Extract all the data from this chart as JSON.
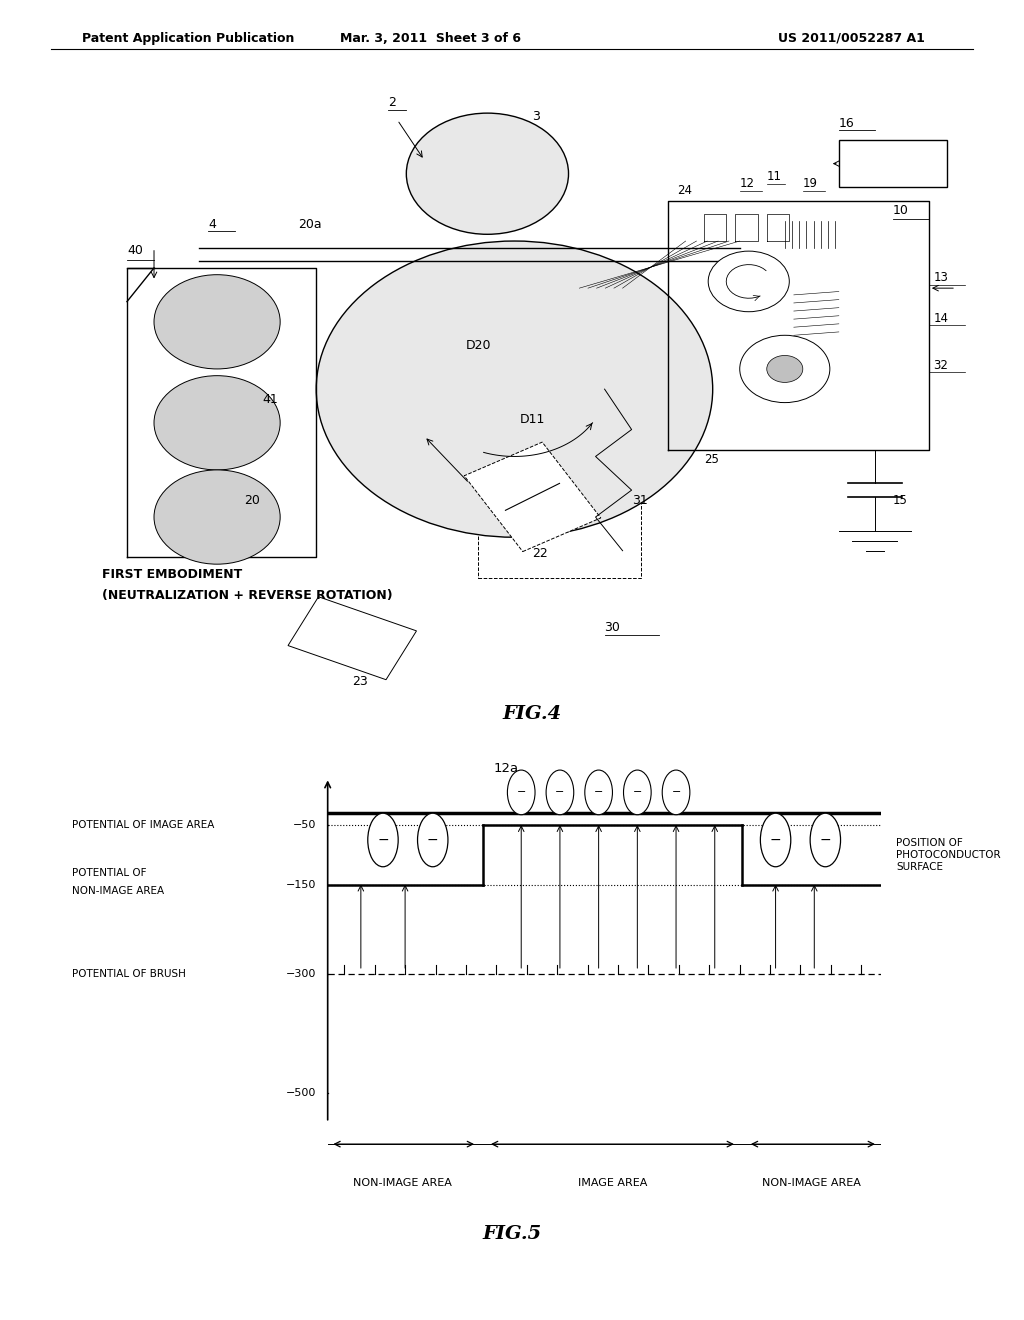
{
  "bg_color": "#ffffff",
  "header_left": "Patent Application Publication",
  "header_mid": "Mar. 3, 2011  Sheet 3 of 6",
  "header_right": "US 2011/0052287 A1",
  "fig4_label": "FIG.4",
  "fig5_label": "FIG.5",
  "fig5_title_line1": "FIRST EMBODIMENT",
  "fig5_title_line2": "(NEUTRALIZATION + REVERSE ROTATION)",
  "label_brush": "POTENTIAL OF BRUSH",
  "label_non_image_l1": "POTENTIAL OF",
  "label_non_image_l2": "NON-IMAGE AREA",
  "label_image_area": "POTENTIAL OF IMAGE AREA",
  "label_pos_phc_l1": "POSITION OF",
  "label_pos_phc_l2": "PHOTOCONDUCTOR",
  "label_pos_phc_l3": "SURFACE",
  "bottom_label_non_image_l": "NON-IMAGE AREA",
  "bottom_label_image": "IMAGE AREA",
  "bottom_label_non_image_r": "NON-IMAGE AREA",
  "label_12a": "12a"
}
